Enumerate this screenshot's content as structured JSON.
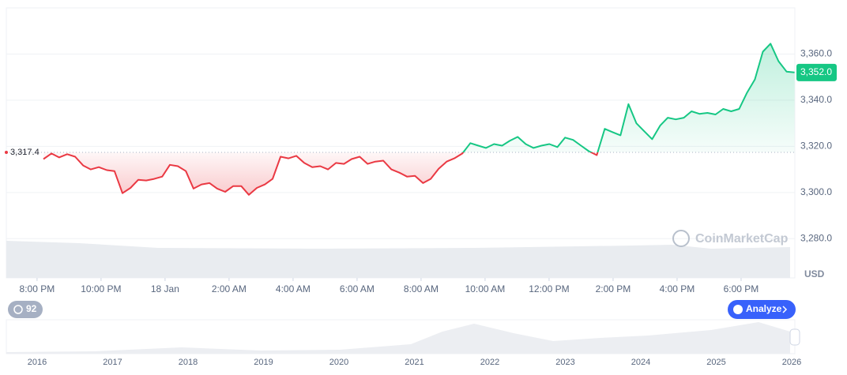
{
  "chart_data": {
    "type": "line",
    "x": [
      0.2,
      0.45,
      0.69,
      0.94,
      1.19,
      1.44,
      1.68,
      1.93,
      2.18,
      2.42,
      2.67,
      2.92,
      3.16,
      3.41,
      3.66,
      3.91,
      4.15,
      4.4,
      4.65,
      4.89,
      5.14,
      5.39,
      5.63,
      5.88,
      6.13,
      6.38,
      6.62,
      6.87,
      7.12,
      7.36,
      7.61,
      7.86,
      8.1,
      8.35,
      8.6,
      8.85,
      9.09,
      9.34,
      9.59,
      9.83,
      10.08,
      10.33,
      10.57,
      10.82,
      11.07,
      11.32,
      11.56,
      11.81,
      12.06,
      12.3,
      12.55,
      12.8,
      13.04,
      13.29,
      13.54,
      13.79,
      14.03,
      14.28,
      14.53,
      14.77,
      15.02,
      15.27,
      15.51,
      15.76,
      16.01,
      16.26,
      16.5,
      16.75,
      17.0,
      17.24,
      17.49,
      17.74,
      17.98,
      18.23,
      18.48,
      18.73,
      18.97,
      19.22,
      19.47,
      19.71,
      19.96,
      20.21,
      20.45,
      20.7,
      20.95,
      21.2,
      21.44,
      21.69,
      21.94,
      22.18,
      22.43,
      22.68,
      22.92,
      23.17,
      23.42,
      23.67
    ],
    "values": [
      3314.5,
      3316.9,
      3315.2,
      3316.6,
      3315.5,
      3311.7,
      3310,
      3311,
      3309.7,
      3309.3,
      3299.7,
      3302,
      3305.5,
      3305.2,
      3305.9,
      3306.9,
      3312,
      3311.4,
      3309.3,
      3301.7,
      3303.5,
      3304.1,
      3301.7,
      3300.3,
      3302.8,
      3302.8,
      3299,
      3302,
      3303.5,
      3305.9,
      3315.5,
      3314.8,
      3315.9,
      3312.8,
      3311,
      3311.4,
      3310,
      3312.8,
      3312.4,
      3314.5,
      3315.5,
      3312.4,
      3313.4,
      3313.8,
      3310,
      3308.6,
      3306.9,
      3307.2,
      3304.1,
      3305.9,
      3310.3,
      3313.4,
      3314.8,
      3316.9,
      3321.4,
      3320.3,
      3319.3,
      3321,
      3320.3,
      3322.4,
      3324.1,
      3321,
      3319.3,
      3320.3,
      3321,
      3319.7,
      3323.8,
      3322.8,
      3320.3,
      3317.9,
      3316.2,
      3327.6,
      3326.2,
      3324.8,
      3338.3,
      3330,
      3326.6,
      3323.1,
      3329,
      3332.4,
      3331.7,
      3332.4,
      3335.2,
      3334.1,
      3334.5,
      3333.8,
      3336.2,
      3335.2,
      3336.2,
      3343.1,
      3349,
      3361,
      3364.5,
      3356.9,
      3352.4,
      3352
    ],
    "xlim": [
      -0.96,
      23.68
    ],
    "ylim": [
      3263,
      3380
    ],
    "xticks": [
      {
        "value": 0,
        "label": "8:00 PM"
      },
      {
        "value": 2,
        "label": "10:00 PM"
      },
      {
        "value": 4,
        "label": "18 Jan"
      },
      {
        "value": 6,
        "label": "2:00 AM"
      },
      {
        "value": 8,
        "label": "4:00 AM"
      },
      {
        "value": 10,
        "label": "6:00 AM"
      },
      {
        "value": 12,
        "label": "8:00 AM"
      },
      {
        "value": 14,
        "label": "10:00 AM"
      },
      {
        "value": 16,
        "label": "12:00 PM"
      },
      {
        "value": 18,
        "label": "2:00 PM"
      },
      {
        "value": 20,
        "label": "4:00 PM"
      },
      {
        "value": 22,
        "label": "6:00 PM"
      }
    ],
    "yticks": [
      {
        "value": 3280,
        "label": "3,280.0"
      },
      {
        "value": 3300,
        "label": "3,300.0"
      },
      {
        "value": 3320,
        "label": "3,320.0"
      },
      {
        "value": 3340,
        "label": "3,340.0"
      },
      {
        "value": 3360,
        "label": "3,360.0"
      }
    ],
    "baseline": {
      "value": 3317.4,
      "label": "3,317.4"
    },
    "last_price": {
      "value": 3352.0,
      "label": "3,352.0"
    },
    "up_color": "#16c784",
    "down_color": "#ea3943",
    "grid": true,
    "currency": "USD",
    "watermark": "CoinMarketCap"
  },
  "controls": {
    "badge": "92",
    "analyze": "Analyze"
  },
  "navigator": {
    "years": [
      "2016",
      "2017",
      "2018",
      "2019",
      "2020",
      "2021",
      "2022",
      "2023",
      "2024",
      "2025",
      "2026"
    ]
  }
}
